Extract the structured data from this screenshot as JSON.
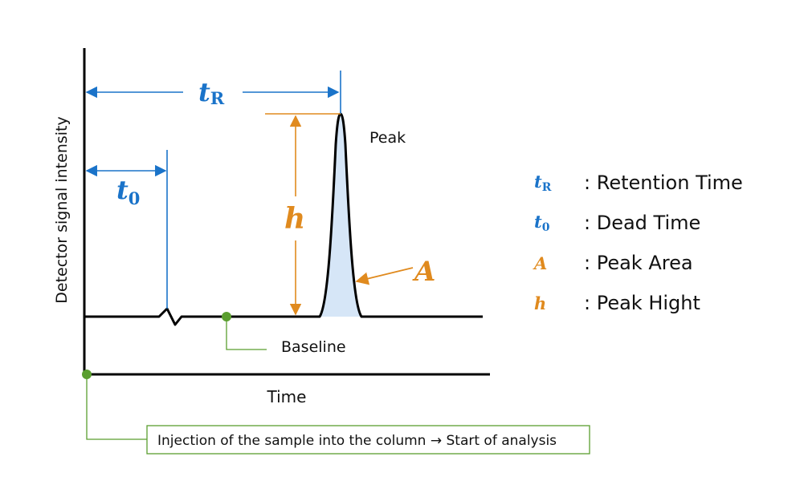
{
  "axes": {
    "y_label": "Detector signal intensity",
    "x_label": "Time"
  },
  "markers": {
    "tR": {
      "main": "t",
      "sub": "R"
    },
    "t0": {
      "main": "t",
      "sub": "0"
    },
    "h": "h",
    "A": "A"
  },
  "labels": {
    "peak": "Peak",
    "baseline": "Baseline",
    "injection": "Injection of the sample into the column → Start of analysis"
  },
  "legend": [
    {
      "symbol": "t",
      "sub": "R",
      "description": ": Retention Time",
      "color": "#1a73c9"
    },
    {
      "symbol": "t",
      "sub": "0",
      "description": ": Dead Time",
      "color": "#1a73c9"
    },
    {
      "symbol": "A",
      "sub": "",
      "description": ": Peak Area",
      "color": "#e08a1e"
    },
    {
      "symbol": "h",
      "sub": "",
      "description": ": Peak Hight",
      "color": "#e08a1e"
    }
  ],
  "colors": {
    "blue": "#1a73c9",
    "orange": "#e08a1e",
    "green": "#5a9e2f",
    "peak_fill": "#d6e6f7"
  }
}
